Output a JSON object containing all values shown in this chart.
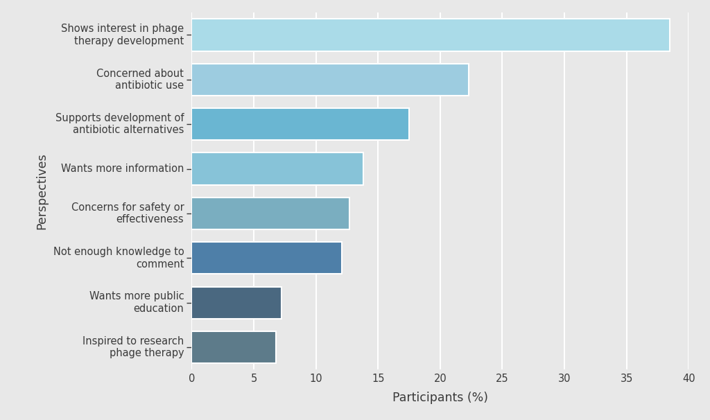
{
  "categories": [
    "Inspired to research\nphage therapy",
    "Wants more public\neducation",
    "Not enough knowledge to\ncomment",
    "Concerns for safety or\neffectiveness",
    "Wants more information",
    "Supports development of\nantibiotic alternatives",
    "Concerned about\nantibiotic use",
    "Shows interest in phage\ntherapy development"
  ],
  "values": [
    6.8,
    7.2,
    12.1,
    12.7,
    13.8,
    17.5,
    22.3,
    38.5
  ],
  "colors": [
    "#5d7b8a",
    "#4a6880",
    "#4e7fa8",
    "#7aaec0",
    "#87c3d8",
    "#6ab6d2",
    "#9dcce0",
    "#aadbe8"
  ],
  "xlabel": "Participants (%)",
  "ylabel": "Perspectives",
  "xlim": [
    0,
    40
  ],
  "xticks": [
    0,
    5,
    10,
    15,
    20,
    25,
    30,
    35,
    40
  ],
  "background_color": "#e8e8e8",
  "panel_color": "#e8e8e8",
  "grid_color": "#ffffff",
  "bar_height": 0.72,
  "tick_label_fontsize": 10.5,
  "axis_label_fontsize": 12.5,
  "label_color": "#3a3a3a",
  "figsize": [
    10.24,
    6.06
  ],
  "dpi": 100
}
